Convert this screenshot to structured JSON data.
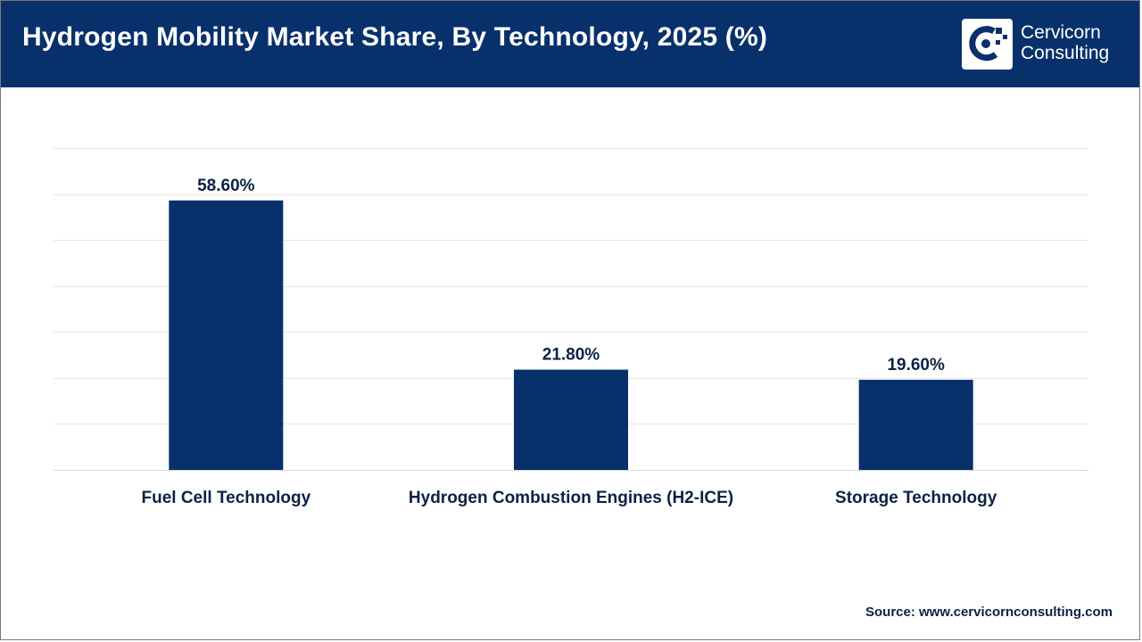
{
  "header": {
    "title": "Hydrogen Mobility Market Share, By Technology, 2025 (%)",
    "brand_line1": "Cervicorn",
    "brand_line2": "Consulting"
  },
  "colors": {
    "header_bg": "#08306b",
    "bar": "#08306b",
    "text": "#0b2244",
    "grid": "#e6e6e6"
  },
  "chart_data": {
    "type": "bar",
    "title": "Hydrogen Mobility Market Share, By Technology, 2025 (%)",
    "categories": [
      "Fuel Cell Technology",
      "Hydrogen Combustion Engines (H2-ICE)",
      "Storage Technology"
    ],
    "values": [
      58.6,
      21.8,
      19.6
    ],
    "value_labels": [
      "58.60%",
      "21.80%",
      "19.60%"
    ],
    "xlabel": "",
    "ylabel": "",
    "ylim": [
      0,
      70
    ],
    "grid": true,
    "legend": "none"
  },
  "footer": {
    "source": "Source: www.cervicornconsulting.com"
  }
}
